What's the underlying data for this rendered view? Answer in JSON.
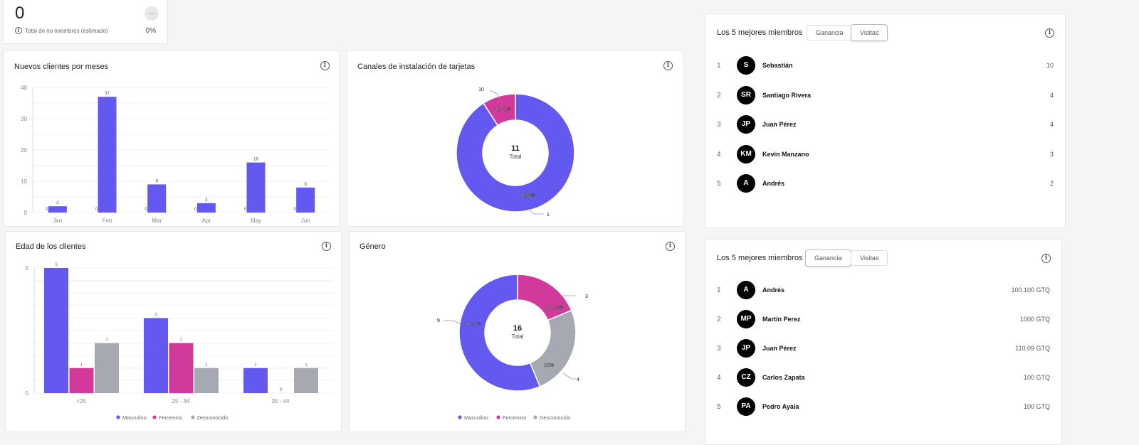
{
  "colors": {
    "masculino": "#6359f0",
    "femenino": "#d1399a",
    "desconocido": "#a6a9b2"
  },
  "summary": {
    "value": "0",
    "label": "Total de no miembros (estimado)",
    "percent": "0%",
    "trend_icon": "—"
  },
  "monthly": {
    "title": "Nuevos clientes por meses",
    "chart_data": {
      "type": "bar",
      "categories": [
        "Jan",
        "Feb",
        "Mar",
        "Apr",
        "May",
        "Jun"
      ],
      "series": [
        {
          "values": [
            0,
            0,
            0,
            0,
            0,
            0
          ]
        },
        {
          "values": [
            2,
            37,
            9,
            3,
            16,
            8
          ]
        }
      ],
      "yticks": [
        "0",
        "10",
        "20",
        "30",
        "40"
      ],
      "ylim": [
        0,
        40
      ]
    }
  },
  "channels": {
    "title": "Canales de instalación de tarjetas",
    "center_value": "11",
    "center_label": "Total",
    "chart_data": {
      "type": "pie",
      "slices": [
        {
          "value": 10,
          "percent_label": "90,91%",
          "count_label": "10"
        },
        {
          "value": 1,
          "percent_label": "9,09%",
          "count_label": "1"
        }
      ]
    }
  },
  "age": {
    "title": "Edad de los clientes",
    "chart_data": {
      "type": "bar",
      "categories": [
        "<25",
        "25 - 34",
        "35 - 44"
      ],
      "series": [
        {
          "name": "Masculino",
          "values": [
            5,
            3,
            1
          ]
        },
        {
          "name": "Femenino",
          "values": [
            1,
            2,
            0
          ]
        },
        {
          "name": "Desconocido",
          "values": [
            2,
            1,
            1
          ]
        }
      ],
      "yticks": [
        "0",
        "5"
      ],
      "ylim": [
        0,
        5
      ]
    }
  },
  "gender": {
    "title": "Género",
    "center_value": "16",
    "center_label": "Total",
    "chart_data": {
      "type": "pie",
      "slices": [
        {
          "name": "Masculino",
          "value": 9,
          "percent_label": "56,25%",
          "count_label": "9"
        },
        {
          "name": "Femenino",
          "value": 3,
          "percent_label": "18,75%",
          "count_label": "3"
        },
        {
          "name": "Desconocido",
          "value": 4,
          "percent_label": "25%",
          "count_label": "4"
        }
      ]
    }
  },
  "top_visits": {
    "title": "Los 5 mejores miembros",
    "tab_ganancia": "Ganancia",
    "tab_visitas": "Visitas",
    "active_tab": "Visitas",
    "members": [
      {
        "rank": "1",
        "initials": "S",
        "name": "Sebastián",
        "value": "10"
      },
      {
        "rank": "2",
        "initials": "SR",
        "name": "Santiago Rivera",
        "value": "4"
      },
      {
        "rank": "3",
        "initials": "JP",
        "name": "Juan Pérez",
        "value": "4"
      },
      {
        "rank": "4",
        "initials": "KM",
        "name": "Kevin Manzano",
        "value": "3"
      },
      {
        "rank": "5",
        "initials": "A",
        "name": "Andrés",
        "value": "2"
      }
    ]
  },
  "top_revenue": {
    "title": "Los 5 mejores miembros",
    "tab_ganancia": "Ganancia",
    "tab_visitas": "Visitas",
    "active_tab": "Ganancia",
    "members": [
      {
        "rank": "1",
        "initials": "A",
        "name": "Andrés",
        "value": "100.100 GTQ"
      },
      {
        "rank": "2",
        "initials": "MP",
        "name": "Martin Perez",
        "value": "1000 GTQ"
      },
      {
        "rank": "3",
        "initials": "JP",
        "name": "Juan Pérez",
        "value": "110,09 GTQ"
      },
      {
        "rank": "4",
        "initials": "CZ",
        "name": "Carlos Zapata",
        "value": "100 GTQ"
      },
      {
        "rank": "5",
        "initials": "PA",
        "name": "Pedro Ayala",
        "value": "100 GTQ"
      }
    ]
  },
  "legend": [
    "Masculino",
    "Femenino",
    "Desconocido"
  ]
}
